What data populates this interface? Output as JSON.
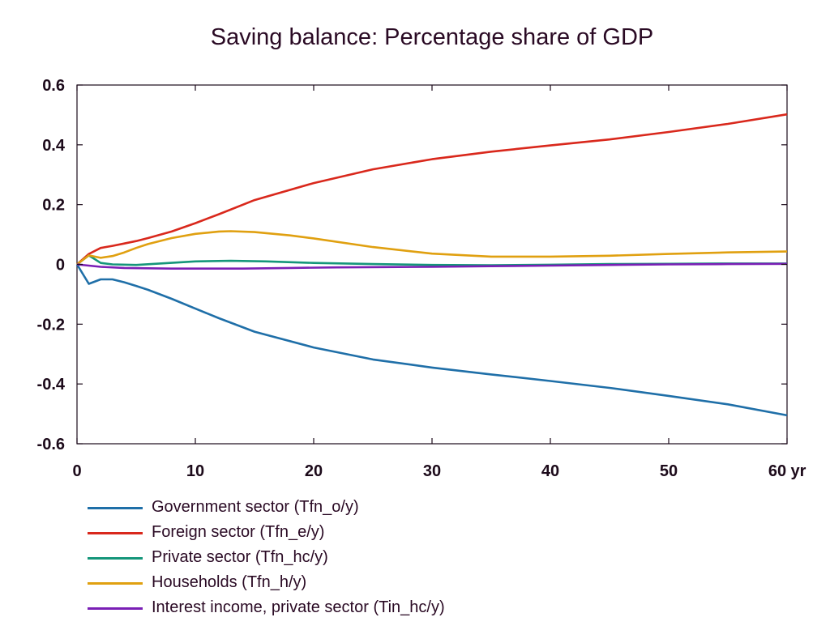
{
  "chart_data": {
    "type": "line",
    "title": "Saving balance: Percentage share of GDP",
    "xlabel": "",
    "ylabel": "",
    "x_unit_label": "yr",
    "xlim": [
      0,
      60
    ],
    "ylim": [
      -0.6,
      0.6
    ],
    "x_ticks": [
      0,
      10,
      20,
      30,
      40,
      50,
      60
    ],
    "y_ticks": [
      0.6,
      0.4,
      0.2,
      0,
      -0.2,
      -0.4,
      -0.6
    ],
    "grid": false,
    "legend_position": "bottom",
    "series": [
      {
        "name": "Government sector (Tfn_o/y)",
        "color": "#1f6fa8",
        "points": [
          [
            0,
            0
          ],
          [
            1,
            -0.065
          ],
          [
            2,
            -0.05
          ],
          [
            3,
            -0.05
          ],
          [
            4,
            -0.06
          ],
          [
            5,
            -0.072
          ],
          [
            6,
            -0.085
          ],
          [
            8,
            -0.115
          ],
          [
            10,
            -0.148
          ],
          [
            12,
            -0.18
          ],
          [
            15,
            -0.225
          ],
          [
            20,
            -0.278
          ],
          [
            25,
            -0.318
          ],
          [
            30,
            -0.345
          ],
          [
            35,
            -0.368
          ],
          [
            40,
            -0.39
          ],
          [
            45,
            -0.413
          ],
          [
            50,
            -0.44
          ],
          [
            55,
            -0.468
          ],
          [
            60,
            -0.505
          ]
        ]
      },
      {
        "name": "Foreign sector (Tfn_e/y)",
        "color": "#d9281c",
        "points": [
          [
            0,
            0
          ],
          [
            1,
            0.035
          ],
          [
            2,
            0.055
          ],
          [
            3,
            0.062
          ],
          [
            4,
            0.07
          ],
          [
            5,
            0.078
          ],
          [
            6,
            0.088
          ],
          [
            8,
            0.11
          ],
          [
            10,
            0.138
          ],
          [
            12,
            0.168
          ],
          [
            15,
            0.215
          ],
          [
            20,
            0.272
          ],
          [
            25,
            0.318
          ],
          [
            30,
            0.352
          ],
          [
            35,
            0.377
          ],
          [
            40,
            0.398
          ],
          [
            45,
            0.418
          ],
          [
            50,
            0.443
          ],
          [
            55,
            0.47
          ],
          [
            60,
            0.502
          ]
        ]
      },
      {
        "name": "Private sector (Tfn_hc/y)",
        "color": "#15967a",
        "points": [
          [
            0,
            0
          ],
          [
            1,
            0.03
          ],
          [
            2,
            0.005
          ],
          [
            3,
            0
          ],
          [
            5,
            -0.002
          ],
          [
            7,
            0.003
          ],
          [
            10,
            0.01
          ],
          [
            13,
            0.012
          ],
          [
            16,
            0.01
          ],
          [
            20,
            0.005
          ],
          [
            25,
            0.001
          ],
          [
            30,
            -0.002
          ],
          [
            35,
            -0.003
          ],
          [
            40,
            -0.001
          ],
          [
            45,
            0.001
          ],
          [
            50,
            0.002
          ],
          [
            55,
            0.003
          ],
          [
            60,
            0.003
          ]
        ]
      },
      {
        "name": "Households (Tfn_h/y)",
        "color": "#e0a010",
        "points": [
          [
            0,
            0
          ],
          [
            1,
            0.03
          ],
          [
            2,
            0.022
          ],
          [
            3,
            0.028
          ],
          [
            4,
            0.04
          ],
          [
            5,
            0.055
          ],
          [
            6,
            0.068
          ],
          [
            8,
            0.088
          ],
          [
            10,
            0.102
          ],
          [
            12,
            0.11
          ],
          [
            13,
            0.111
          ],
          [
            15,
            0.108
          ],
          [
            18,
            0.097
          ],
          [
            20,
            0.087
          ],
          [
            25,
            0.058
          ],
          [
            30,
            0.036
          ],
          [
            35,
            0.026
          ],
          [
            40,
            0.026
          ],
          [
            45,
            0.029
          ],
          [
            50,
            0.035
          ],
          [
            55,
            0.04
          ],
          [
            60,
            0.043
          ]
        ]
      },
      {
        "name": "Interest income, private sector (Tin_hc/y)",
        "color": "#7a1fb5",
        "points": [
          [
            0,
            0
          ],
          [
            2,
            -0.008
          ],
          [
            4,
            -0.012
          ],
          [
            6,
            -0.013
          ],
          [
            8,
            -0.014
          ],
          [
            10,
            -0.014
          ],
          [
            14,
            -0.014
          ],
          [
            18,
            -0.012
          ],
          [
            22,
            -0.01
          ],
          [
            26,
            -0.009
          ],
          [
            30,
            -0.008
          ],
          [
            35,
            -0.006
          ],
          [
            40,
            -0.004
          ],
          [
            45,
            -0.002
          ],
          [
            50,
            0
          ],
          [
            55,
            0.001
          ],
          [
            60,
            0.002
          ]
        ]
      }
    ]
  }
}
